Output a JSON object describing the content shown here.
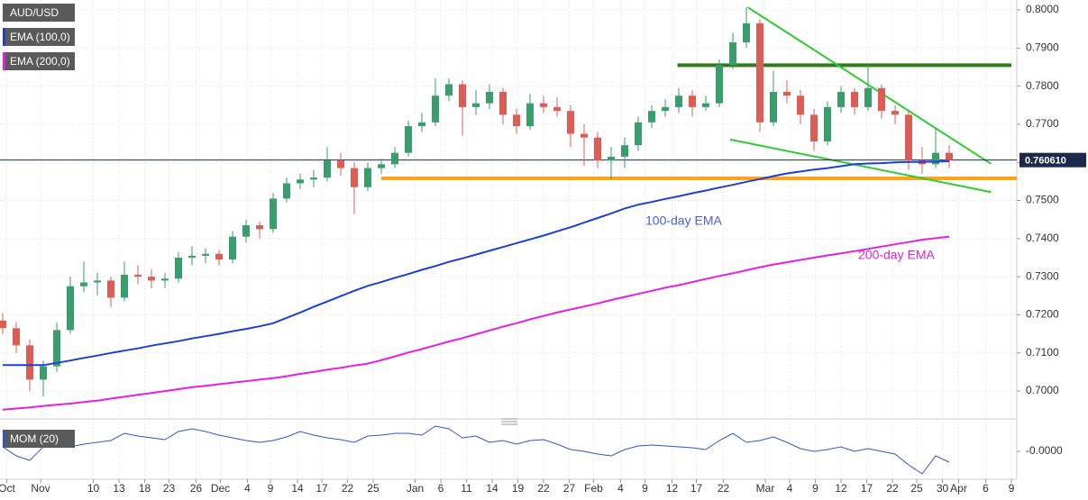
{
  "chart_data": [
    {
      "type": "candlestick",
      "xlim": [
        -0.2,
        75.0
      ],
      "ylim": [
        0.6934,
        0.8026
      ],
      "grid": true,
      "xticks": [
        {
          "value": 0.3,
          "label": "Oct"
        },
        {
          "value": 2.8,
          "label": "Nov"
        },
        {
          "value": 6.7,
          "label": "10"
        },
        {
          "value": 8.6,
          "label": "13"
        },
        {
          "value": 10.5,
          "label": "18"
        },
        {
          "value": 12.3,
          "label": "23"
        },
        {
          "value": 14.3,
          "label": "26"
        },
        {
          "value": 16.1,
          "label": "Dec"
        },
        {
          "value": 18.1,
          "label": "4"
        },
        {
          "value": 19.8,
          "label": "9"
        },
        {
          "value": 21.8,
          "label": "14"
        },
        {
          "value": 23.6,
          "label": "17"
        },
        {
          "value": 25.5,
          "label": "22"
        },
        {
          "value": 27.4,
          "label": "25"
        },
        {
          "value": 30.5,
          "label": "Jan"
        },
        {
          "value": 32.4,
          "label": "6"
        },
        {
          "value": 34.3,
          "label": "11"
        },
        {
          "value": 36.2,
          "label": "14"
        },
        {
          "value": 38.1,
          "label": "19"
        },
        {
          "value": 40.0,
          "label": "22"
        },
        {
          "value": 41.9,
          "label": "27"
        },
        {
          "value": 43.7,
          "label": "Feb"
        },
        {
          "value": 45.7,
          "label": "4"
        },
        {
          "value": 47.5,
          "label": "9"
        },
        {
          "value": 49.5,
          "label": "12"
        },
        {
          "value": 51.3,
          "label": "17"
        },
        {
          "value": 53.3,
          "label": "22"
        },
        {
          "value": 56.4,
          "label": "Mar"
        },
        {
          "value": 58.2,
          "label": "4"
        },
        {
          "value": 60.1,
          "label": "9"
        },
        {
          "value": 62.0,
          "label": "12"
        },
        {
          "value": 63.9,
          "label": "17"
        },
        {
          "value": 65.8,
          "label": "22"
        },
        {
          "value": 67.6,
          "label": "25"
        },
        {
          "value": 69.5,
          "label": "30"
        },
        {
          "value": 70.7,
          "label": "Apr"
        },
        {
          "value": 72.7,
          "label": "6"
        },
        {
          "value": 74.6,
          "label": "9"
        }
      ],
      "yticks": [
        {
          "value": 0.7,
          "label": "0.7000"
        },
        {
          "value": 0.71,
          "label": "0.7100"
        },
        {
          "value": 0.72,
          "label": "0.7200"
        },
        {
          "value": 0.73,
          "label": "0.7300"
        },
        {
          "value": 0.74,
          "label": "0.7400"
        },
        {
          "value": 0.75,
          "label": "0.7500"
        },
        {
          "value": 0.76,
          "label": "0.7600"
        },
        {
          "value": 0.77,
          "label": "0.7700"
        },
        {
          "value": 0.78,
          "label": "0.7800"
        },
        {
          "value": 0.79,
          "label": "0.7900"
        },
        {
          "value": 0.8,
          "label": "0.8000"
        }
      ],
      "last_price": {
        "value": 0.76061,
        "label": "0.760610"
      },
      "series": [
        {
          "name": "AUD/USD",
          "type": "candlestick",
          "up_color": "#3a9d6e",
          "down_color": "#dc5d55",
          "values": [
            [
              0.7185,
              0.7205,
              0.715,
              0.7165
            ],
            [
              0.7165,
              0.718,
              0.71,
              0.712
            ],
            [
              0.712,
              0.7135,
              0.7,
              0.703
            ],
            [
              0.703,
              0.708,
              0.6985,
              0.7065
            ],
            [
              0.7065,
              0.718,
              0.705,
              0.716
            ],
            [
              0.716,
              0.73,
              0.715,
              0.7275
            ],
            [
              0.7275,
              0.734,
              0.726,
              0.7285
            ],
            [
              0.7285,
              0.731,
              0.725,
              0.729
            ],
            [
              0.729,
              0.73,
              0.722,
              0.7245
            ],
            [
              0.7245,
              0.734,
              0.7235,
              0.7305
            ],
            [
              0.7305,
              0.733,
              0.728,
              0.73
            ],
            [
              0.73,
              0.732,
              0.727,
              0.729
            ],
            [
              0.729,
              0.731,
              0.727,
              0.7295
            ],
            [
              0.7295,
              0.7365,
              0.7285,
              0.735
            ],
            [
              0.735,
              0.738,
              0.733,
              0.7355
            ],
            [
              0.7355,
              0.7375,
              0.7335,
              0.736
            ],
            [
              0.736,
              0.737,
              0.733,
              0.7345
            ],
            [
              0.7345,
              0.742,
              0.7335,
              0.7405
            ],
            [
              0.7405,
              0.745,
              0.739,
              0.7435
            ],
            [
              0.7435,
              0.7445,
              0.74,
              0.7425
            ],
            [
              0.7425,
              0.752,
              0.7415,
              0.7505
            ],
            [
              0.7505,
              0.756,
              0.7495,
              0.7545
            ],
            [
              0.7545,
              0.757,
              0.753,
              0.7555
            ],
            [
              0.7555,
              0.758,
              0.7535,
              0.756
            ],
            [
              0.756,
              0.764,
              0.755,
              0.7605
            ],
            [
              0.7605,
              0.7625,
              0.7565,
              0.7585
            ],
            [
              0.7585,
              0.76,
              0.7465,
              0.7535
            ],
            [
              0.7535,
              0.76,
              0.7525,
              0.7585
            ],
            [
              0.7585,
              0.761,
              0.757,
              0.7595
            ],
            [
              0.7595,
              0.764,
              0.7585,
              0.7625
            ],
            [
              0.7625,
              0.771,
              0.7615,
              0.7695
            ],
            [
              0.7695,
              0.773,
              0.768,
              0.7705
            ],
            [
              0.7705,
              0.782,
              0.7695,
              0.7775
            ],
            [
              0.7775,
              0.782,
              0.776,
              0.7805
            ],
            [
              0.7805,
              0.7815,
              0.767,
              0.7745
            ],
            [
              0.7745,
              0.779,
              0.7725,
              0.7755
            ],
            [
              0.7755,
              0.7805,
              0.774,
              0.7785
            ],
            [
              0.7785,
              0.7795,
              0.77,
              0.7725
            ],
            [
              0.7725,
              0.774,
              0.7675,
              0.7695
            ],
            [
              0.7695,
              0.778,
              0.7685,
              0.7755
            ],
            [
              0.7755,
              0.7775,
              0.773,
              0.7745
            ],
            [
              0.7745,
              0.777,
              0.772,
              0.7735
            ],
            [
              0.7735,
              0.775,
              0.764,
              0.7675
            ],
            [
              0.7675,
              0.77,
              0.759,
              0.7665
            ],
            [
              0.7665,
              0.768,
              0.7585,
              0.7605
            ],
            [
              0.7605,
              0.764,
              0.7555,
              0.7615
            ],
            [
              0.7615,
              0.7665,
              0.7585,
              0.7645
            ],
            [
              0.7645,
              0.772,
              0.763,
              0.7705
            ],
            [
              0.7705,
              0.775,
              0.769,
              0.7735
            ],
            [
              0.7735,
              0.7765,
              0.772,
              0.7745
            ],
            [
              0.7745,
              0.7795,
              0.773,
              0.7775
            ],
            [
              0.7775,
              0.779,
              0.772,
              0.7745
            ],
            [
              0.7745,
              0.7775,
              0.7735,
              0.7755
            ],
            [
              0.7755,
              0.787,
              0.7745,
              0.7855
            ],
            [
              0.7855,
              0.794,
              0.7845,
              0.7915
            ],
            [
              0.7915,
              0.8007,
              0.79,
              0.7965
            ],
            [
              0.7965,
              0.7975,
              0.768,
              0.7705
            ],
            [
              0.7705,
              0.784,
              0.7695,
              0.7785
            ],
            [
              0.7785,
              0.7815,
              0.7755,
              0.7775
            ],
            [
              0.7775,
              0.779,
              0.77,
              0.7725
            ],
            [
              0.7725,
              0.774,
              0.763,
              0.7655
            ],
            [
              0.7655,
              0.776,
              0.7645,
              0.7745
            ],
            [
              0.7745,
              0.78,
              0.773,
              0.7785
            ],
            [
              0.7785,
              0.7795,
              0.7725,
              0.7745
            ],
            [
              0.7745,
              0.7855,
              0.7735,
              0.7795
            ],
            [
              0.7795,
              0.7805,
              0.7715,
              0.7735
            ],
            [
              0.7735,
              0.775,
              0.77,
              0.7725
            ],
            [
              0.7725,
              0.7735,
              0.758,
              0.7605
            ],
            [
              0.7605,
              0.764,
              0.757,
              0.7595
            ],
            [
              0.7595,
              0.769,
              0.7585,
              0.7625
            ],
            [
              0.7625,
              0.7645,
              0.7585,
              0.7606
            ]
          ]
        },
        {
          "name": "EMA (100,0)",
          "type": "line",
          "color": "#1c3fd6",
          "values": [
            0.7068,
            0.7068,
            0.7068,
            0.7068,
            0.7074,
            0.708,
            0.7087,
            0.7093,
            0.71,
            0.7106,
            0.7112,
            0.7119,
            0.7125,
            0.7131,
            0.7138,
            0.7144,
            0.715,
            0.7157,
            0.7163,
            0.717,
            0.7178,
            0.7192,
            0.7206,
            0.7221,
            0.7235,
            0.7249,
            0.7263,
            0.7276,
            0.7286,
            0.7297,
            0.7307,
            0.7318,
            0.7328,
            0.7339,
            0.7348,
            0.7358,
            0.7368,
            0.7378,
            0.7388,
            0.7398,
            0.7408,
            0.7419,
            0.743,
            0.7442,
            0.7454,
            0.7466,
            0.7479,
            0.7489,
            0.7496,
            0.7504,
            0.7511,
            0.7519,
            0.7526,
            0.7534,
            0.7541,
            0.7549,
            0.7556,
            0.7564,
            0.7571,
            0.7576,
            0.7581,
            0.7585,
            0.759,
            0.7595,
            0.7597,
            0.7598,
            0.76,
            0.7601,
            0.7601,
            0.7602,
            0.7603
          ]
        },
        {
          "name": "EMA (200,0)",
          "type": "line",
          "color": "#e61ee6",
          "values": [
            0.6951,
            0.6954,
            0.6957,
            0.6961,
            0.6964,
            0.6967,
            0.6971,
            0.6975,
            0.698,
            0.6985,
            0.699,
            0.6995,
            0.7,
            0.7005,
            0.701,
            0.7014,
            0.7018,
            0.7022,
            0.7026,
            0.703,
            0.7034,
            0.7039,
            0.7045,
            0.705,
            0.7056,
            0.7061,
            0.7067,
            0.7072,
            0.7081,
            0.7091,
            0.7101,
            0.711,
            0.712,
            0.713,
            0.7139,
            0.7149,
            0.7159,
            0.7169,
            0.7178,
            0.7188,
            0.7197,
            0.7206,
            0.7214,
            0.7222,
            0.723,
            0.7239,
            0.7247,
            0.7255,
            0.7263,
            0.7271,
            0.7278,
            0.7286,
            0.7294,
            0.7302,
            0.7309,
            0.7317,
            0.7325,
            0.7332,
            0.7338,
            0.7344,
            0.735,
            0.7356,
            0.7361,
            0.7367,
            0.7373,
            0.7379,
            0.7385,
            0.7391,
            0.7397,
            0.7401,
            0.7405
          ]
        }
      ],
      "trendlines": [
        {
          "color": "#ffa31a",
          "x": [
            28,
            75
          ],
          "y": [
            0.7558,
            0.7558
          ]
        },
        {
          "color": "#2f7d1a",
          "x": [
            49.9,
            74.6
          ],
          "y": [
            0.7855,
            0.7855
          ]
        },
        {
          "color": "#2fcc2f",
          "x": [
            55.1,
            73.1
          ],
          "y": [
            0.8007,
            0.7596
          ]
        },
        {
          "color": "#2fcc2f",
          "x": [
            53.8,
            73.1
          ],
          "y": [
            0.766,
            0.7522
          ]
        }
      ],
      "annotations": [
        {
          "text": "100-day EMA",
          "color": "#4660e0"
        },
        {
          "text": "200-day EMA",
          "color": "#e020d8"
        }
      ]
    },
    {
      "type": "line",
      "ylim": [
        -0.031,
        0.031
      ],
      "yticks": [
        {
          "value": 0,
          "label": "-0.0000"
        }
      ],
      "series": [
        {
          "name": "MOM (20)",
          "color": "#3355cc",
          "values": [
            0.005,
            -0.005,
            -0.01,
            0.005,
            0.01,
            0.005,
            0.008,
            0.01,
            0.012,
            0.02,
            0.017,
            0.015,
            0.013,
            0.022,
            0.025,
            0.022,
            0.018,
            0.015,
            0.012,
            0.01,
            0.012,
            0.016,
            0.022,
            0.018,
            0.015,
            0.013,
            0.01,
            0.017,
            0.018,
            0.02,
            0.02,
            0.018,
            0.028,
            0.025,
            0.015,
            0.017,
            0.01,
            0.012,
            0.008,
            0.012,
            0.013,
            0.008,
            0.002,
            0,
            -0.003,
            -0.005,
            0.002,
            0.006,
            0.007,
            0.006,
            0.005,
            0.004,
            0.002,
            0.012,
            0.02,
            0.01,
            0.012,
            0.016,
            0.01,
            0.003,
            0,
            0.002,
            0.005,
            0,
            0.003,
            0,
            -0.003,
            -0.015,
            -0.025,
            -0.005,
            -0.012
          ]
        }
      ]
    }
  ]
}
